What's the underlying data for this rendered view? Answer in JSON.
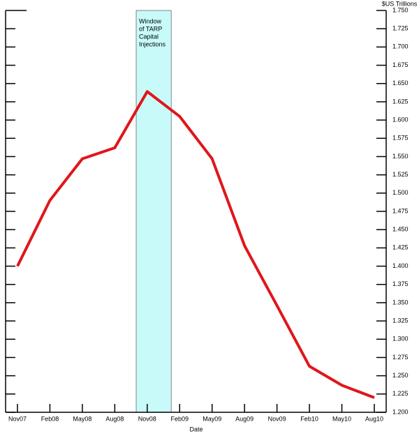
{
  "chart_data": {
    "type": "line",
    "y_axis_label": "$US Trillions",
    "x_axis_label": "Date",
    "categories": [
      "Nov07",
      "Feb08",
      "May08",
      "Aug08",
      "Nov08",
      "Feb09",
      "May09",
      "Aug09",
      "Nov09",
      "Feb10",
      "May10",
      "Aug10"
    ],
    "series": [
      {
        "color": "#e0161b",
        "values": [
          1.4,
          1.49,
          1.547,
          1.562,
          1.639,
          1.605,
          1.547,
          1.428,
          1.346,
          1.263,
          1.237,
          1.22
        ]
      }
    ],
    "ylim": [
      1.2,
      1.75
    ],
    "yticks": [
      {
        "value": 1.2,
        "label": "1.200"
      },
      {
        "value": 1.225,
        "label": "1.225"
      },
      {
        "value": 1.25,
        "label": "1.250"
      },
      {
        "value": 1.275,
        "label": "1.275"
      },
      {
        "value": 1.3,
        "label": "1.300"
      },
      {
        "value": 1.325,
        "label": "1.325"
      },
      {
        "value": 1.35,
        "label": "1.350"
      },
      {
        "value": 1.375,
        "label": "1.375"
      },
      {
        "value": 1.4,
        "label": "1.400"
      },
      {
        "value": 1.425,
        "label": "1.425"
      },
      {
        "value": 1.45,
        "label": "1.450"
      },
      {
        "value": 1.475,
        "label": "1.475"
      },
      {
        "value": 1.5,
        "label": "1.500"
      },
      {
        "value": 1.525,
        "label": "1.525"
      },
      {
        "value": 1.55,
        "label": "1.550"
      },
      {
        "value": 1.575,
        "label": "1.575"
      },
      {
        "value": 1.6,
        "label": "1.600"
      },
      {
        "value": 1.625,
        "label": "1.625"
      },
      {
        "value": 1.65,
        "label": "1.650"
      },
      {
        "value": 1.675,
        "label": "1.675"
      },
      {
        "value": 1.7,
        "label": "1.700"
      },
      {
        "value": 1.725,
        "label": "1.725"
      },
      {
        "value": 1.75,
        "label": "1.750"
      }
    ],
    "highlight": {
      "from": 3.66,
      "to": 4.74,
      "color": "#c8fafa",
      "text": [
        "Window",
        "of TARP",
        "Capital",
        "Injections"
      ]
    }
  }
}
